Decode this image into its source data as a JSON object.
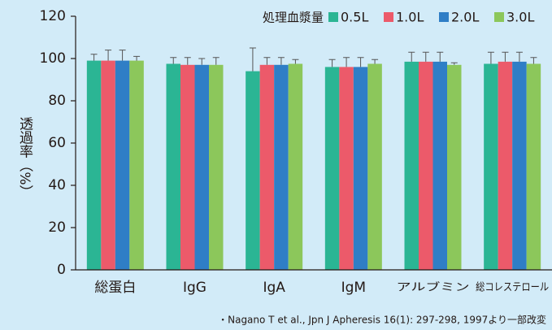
{
  "chart_data": {
    "type": "bar",
    "y_label": "透過率（%）",
    "legend_title": "処理血漿量",
    "legend_position": "top-right",
    "footnote": "・Nagano T et al., Jpn J Apheresis 16(1): 297-298, 1997より一部改変",
    "categories": [
      "総蛋白",
      "IgG",
      "IgA",
      "IgM",
      "アルブミン",
      "総コレステロール"
    ],
    "series": [
      {
        "name": "0.5L",
        "color": "#2bb594",
        "values": [
          99,
          97.5,
          94,
          96,
          98.5,
          97.5
        ],
        "errors": [
          3,
          3,
          11,
          3.5,
          4.5,
          5.5
        ]
      },
      {
        "name": "1.0L",
        "color": "#ec5a6a",
        "values": [
          99,
          97,
          97,
          96,
          98.5,
          98.5
        ],
        "errors": [
          5,
          3.5,
          3.5,
          4.5,
          4.5,
          4.5
        ]
      },
      {
        "name": "2.0L",
        "color": "#2f7ec6",
        "values": [
          99,
          97,
          97,
          96,
          98.5,
          98.5
        ],
        "errors": [
          5,
          3,
          3.5,
          4.5,
          4.5,
          4.5
        ]
      },
      {
        "name": "3.0L",
        "color": "#8cc75b",
        "values": [
          99,
          97,
          97.5,
          97.5,
          97,
          97.5
        ],
        "errors": [
          2,
          3.5,
          2,
          2,
          1,
          3
        ]
      }
    ],
    "ylim": [
      0,
      120
    ],
    "yticks": [
      0,
      20,
      40,
      60,
      80,
      100,
      120
    ]
  }
}
